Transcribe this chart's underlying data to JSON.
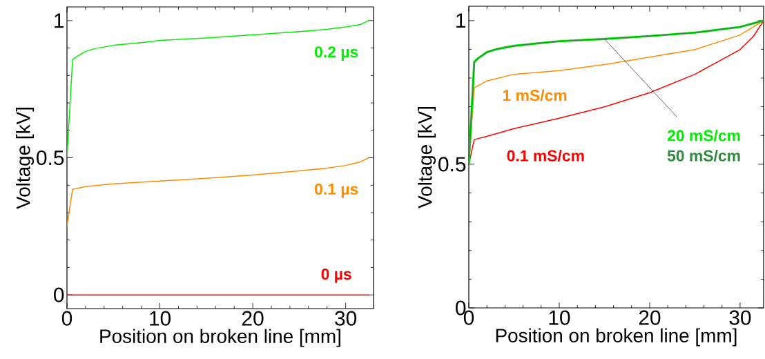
{
  "chart_data": [
    {
      "type": "line",
      "xlabel": "Position on broken line [mm]",
      "ylabel": "Voltage [kV]",
      "xlim": [
        0,
        33
      ],
      "ylim": [
        -0.05,
        1.05
      ],
      "xticks": [
        0,
        10,
        20,
        30
      ],
      "yticks": [
        0,
        0.5,
        1
      ],
      "grid": false,
      "legend": false,
      "marker": "none",
      "line_style": "solid",
      "series": [
        {
          "name": "0 µs",
          "color": "#ff0000",
          "x": [
            0,
            32.5
          ],
          "values": [
            0,
            0
          ]
        },
        {
          "name": "0.1 µs",
          "color": "#ff8c00",
          "x": [
            0,
            0.6,
            2,
            5,
            10,
            15,
            20,
            25,
            28,
            30,
            31.5,
            32.5
          ],
          "values": [
            0.25,
            0.385,
            0.395,
            0.405,
            0.415,
            0.425,
            0.437,
            0.452,
            0.462,
            0.472,
            0.484,
            0.5
          ]
        },
        {
          "name": "0.2 µs",
          "color": "#00ee00",
          "x": [
            0,
            0.6,
            1,
            2,
            3,
            5,
            8,
            10,
            15,
            20,
            25,
            28,
            30,
            31.5,
            32.5
          ],
          "values": [
            0.5,
            0.857,
            0.868,
            0.888,
            0.898,
            0.91,
            0.92,
            0.928,
            0.937,
            0.948,
            0.96,
            0.968,
            0.977,
            0.985,
            1.0
          ]
        }
      ]
    },
    {
      "type": "line",
      "xlabel": "Position on broken line [mm]",
      "ylabel": "Voltage [kV]",
      "xlim": [
        0,
        32.6
      ],
      "ylim": [
        0,
        1.05
      ],
      "xticks": [
        0,
        10,
        20,
        30
      ],
      "yticks": [
        0,
        0.5,
        1
      ],
      "grid": false,
      "legend": false,
      "marker": "none",
      "line_style": "solid",
      "series": [
        {
          "name": "0.1 mS/cm",
          "color": "#ff0000",
          "x": [
            0,
            0.6,
            2,
            5,
            10,
            15,
            20,
            25,
            30,
            31.5,
            32.6
          ],
          "values": [
            0.5,
            0.586,
            0.597,
            0.624,
            0.66,
            0.7,
            0.749,
            0.813,
            0.899,
            0.946,
            1.0
          ]
        },
        {
          "name": "1 mS/cm",
          "color": "#ff8c00",
          "x": [
            0,
            0.6,
            2,
            5,
            10,
            15,
            20,
            25,
            30,
            32.6
          ],
          "values": [
            0.5,
            0.766,
            0.79,
            0.813,
            0.826,
            0.847,
            0.873,
            0.899,
            0.95,
            1.0
          ]
        },
        {
          "name": "20 mS/cm",
          "color": "#00ee00",
          "x": [
            0,
            0.6,
            1,
            2,
            3,
            5,
            8,
            10,
            15,
            20,
            25,
            30,
            32.6
          ],
          "values": [
            0.5,
            0.856,
            0.868,
            0.89,
            0.9,
            0.912,
            0.922,
            0.928,
            0.936,
            0.946,
            0.958,
            0.978,
            1.0
          ]
        },
        {
          "name": "50 mS/cm",
          "color": "#2e8b3a",
          "x": [
            0,
            0.6,
            1,
            2,
            3,
            5,
            8,
            10,
            15,
            20,
            25,
            30,
            32.6
          ],
          "values": [
            0.5,
            0.856,
            0.868,
            0.89,
            0.9,
            0.912,
            0.922,
            0.928,
            0.936,
            0.946,
            0.958,
            0.978,
            1.0
          ]
        }
      ]
    }
  ]
}
